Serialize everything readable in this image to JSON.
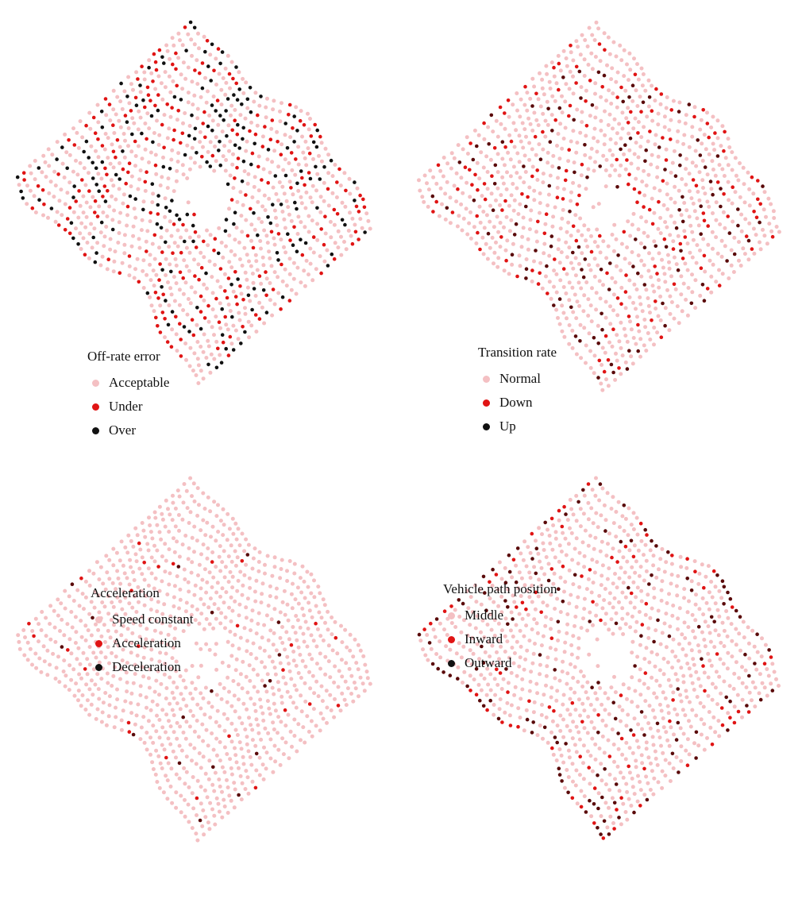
{
  "palette": {
    "pink": "#f4c0c3",
    "red": "#e01414",
    "black": "#111111",
    "dark_red": "#5a0a0a"
  },
  "chart_data": [
    {
      "type": "scatter",
      "title": "",
      "legend": {
        "title": "Off-rate error",
        "placement": "bottom-left",
        "entries": [
          {
            "label": "Acceptable",
            "color": "#f4c0c3"
          },
          {
            "label": "Under",
            "color": "#e01414"
          },
          {
            "label": "Over",
            "color": "#111111"
          }
        ]
      },
      "series": [
        {
          "name": "Acceptable",
          "color": "#f4c0c3",
          "share": 0.62
        },
        {
          "name": "Under",
          "color": "#e01414",
          "share": 0.2
        },
        {
          "name": "Over",
          "color": "#111111",
          "share": 0.18
        }
      ],
      "axes": "none",
      "grid": false
    },
    {
      "type": "scatter",
      "title": "",
      "legend": {
        "title": "Transition rate",
        "placement": "bottom-center",
        "entries": [
          {
            "label": "Normal",
            "color": "#f4c0c3"
          },
          {
            "label": "Down",
            "color": "#e01414"
          },
          {
            "label": "Up",
            "color": "#111111"
          }
        ]
      },
      "series": [
        {
          "name": "Normal",
          "color": "#f4c0c3",
          "share": 0.72
        },
        {
          "name": "Down",
          "color": "#e01414",
          "share": 0.16
        },
        {
          "name": "Up",
          "color": "#5a0a0a",
          "share": 0.12
        }
      ],
      "axes": "none",
      "grid": false
    },
    {
      "type": "scatter",
      "title": "",
      "legend": {
        "title": "Acceleration",
        "placement": "bottom-left",
        "entries": [
          {
            "label": "Speed constant",
            "color": "#f4c0c3"
          },
          {
            "label": "Acceleration",
            "color": "#e01414"
          },
          {
            "label": "Deceleration",
            "color": "#111111"
          }
        ]
      },
      "series": [
        {
          "name": "Speed constant",
          "color": "#f4c0c3",
          "share": 0.965
        },
        {
          "name": "Acceleration",
          "color": "#e01414",
          "share": 0.02
        },
        {
          "name": "Deceleration",
          "color": "#5a0a0a",
          "share": 0.015
        }
      ],
      "axes": "none",
      "grid": false
    },
    {
      "type": "scatter",
      "title": "",
      "legend": {
        "title": "Vehicle path position",
        "placement": "bottom-center",
        "entries": [
          {
            "label": "Middle",
            "color": "#f4c0c3"
          },
          {
            "label": "Inward",
            "color": "#e01414"
          },
          {
            "label": "Outward",
            "color": "#111111"
          }
        ]
      },
      "series": [
        {
          "name": "Middle",
          "color": "#f4c0c3",
          "share": 0.88
        },
        {
          "name": "Inward",
          "color": "#e01414",
          "share": 0.05
        },
        {
          "name": "Outward",
          "color": "#5a0a0a",
          "share": 0.07
        }
      ],
      "axes": "none",
      "grid": false
    }
  ]
}
